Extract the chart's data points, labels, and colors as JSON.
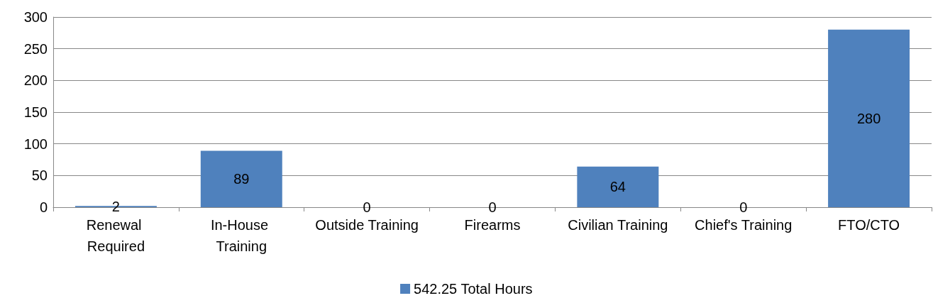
{
  "chart_data": {
    "type": "bar",
    "categories": [
      "Renewal Required",
      "In-House Training",
      "Outside Training",
      "Firearms",
      "Civilian Training",
      "Chief's Training",
      "FTO/CTO"
    ],
    "series": [
      {
        "name": "542.25 Total Hours",
        "color": "#4f81bd",
        "values": [
          2,
          89,
          0,
          0,
          64,
          0,
          280
        ]
      }
    ],
    "ylim": [
      0,
      300
    ],
    "yticks": [
      0,
      50,
      100,
      150,
      200,
      250,
      300
    ],
    "grid": "y",
    "legend": "bottom",
    "data_labels": true
  }
}
